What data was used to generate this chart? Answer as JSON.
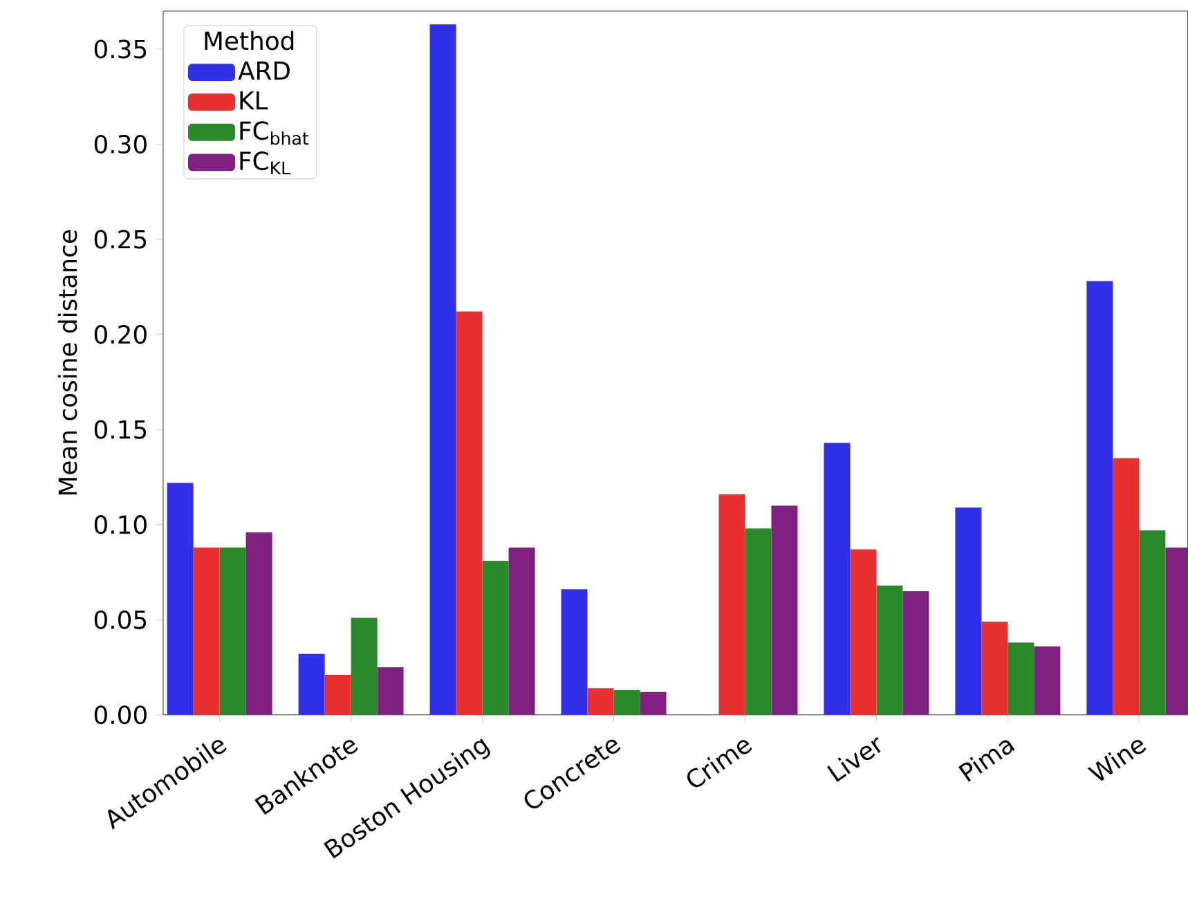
{
  "chart_data": {
    "type": "bar",
    "ylabel": "Mean cosine distance",
    "legend_title": "Method",
    "categories": [
      "Automobile",
      "Banknote",
      "Boston Housing",
      "Concrete",
      "Crime",
      "Liver",
      "Pima",
      "Wine"
    ],
    "series": [
      {
        "name": "ARD",
        "color": "#3030e8",
        "values": [
          0.122,
          0.032,
          0.363,
          0.066,
          null,
          0.143,
          0.109,
          0.228
        ]
      },
      {
        "name": "KL",
        "color": "#e83030",
        "values": [
          0.088,
          0.021,
          0.212,
          0.014,
          0.116,
          0.087,
          0.049,
          0.135
        ]
      },
      {
        "name": "FC$_{bhat}$",
        "color": "#2a8a2a",
        "values": [
          0.088,
          0.051,
          0.081,
          0.013,
          0.098,
          0.068,
          0.038,
          0.097
        ]
      },
      {
        "name": "FC$_{KL}$",
        "color": "#802080",
        "values": [
          0.096,
          0.025,
          0.088,
          0.012,
          0.11,
          0.065,
          0.036,
          0.088
        ]
      }
    ],
    "ylim": [
      0,
      0.37
    ],
    "yticks": [
      {
        "value": 0,
        "label": "0.00"
      },
      {
        "value": 0.05,
        "label": "0.05"
      },
      {
        "value": 0.1,
        "label": "0.10"
      },
      {
        "value": 0.15,
        "label": "0.15"
      },
      {
        "value": 0.2,
        "label": "0.20"
      },
      {
        "value": 0.25,
        "label": "0.25"
      },
      {
        "value": 0.3,
        "label": "0.30"
      },
      {
        "value": 0.35,
        "label": "0.35"
      }
    ],
    "legend": "top left",
    "grid": false
  }
}
